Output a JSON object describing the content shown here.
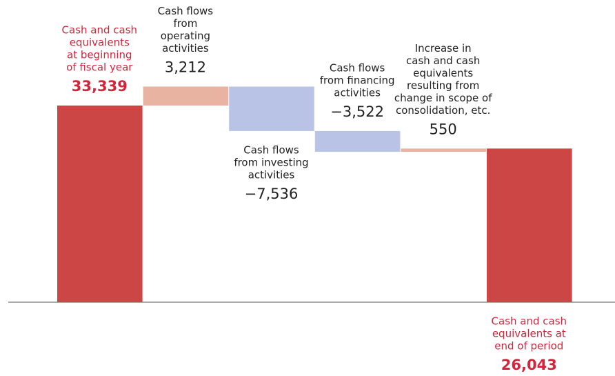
{
  "chart_data": {
    "type": "waterfall",
    "categories": [
      [
        "Cash and cash",
        "equivalents",
        "at beginning",
        "of fiscal year"
      ],
      [
        "Cash flows",
        "from",
        "operating",
        "activities"
      ],
      [
        "Cash flows",
        "from investing",
        "activities"
      ],
      [
        "Cash flows",
        "from financing",
        "activities"
      ],
      [
        "Increase in",
        "cash and cash",
        "equivalents",
        "resulting from",
        "change in scope of",
        "consolidation, etc."
      ],
      [
        "Cash and cash",
        "equivalents at",
        "end of period"
      ]
    ],
    "values": [
      33339,
      3212,
      -7536,
      -3522,
      550,
      26043
    ],
    "value_labels": [
      "33,339",
      "3,212",
      "−7,536",
      "−3,522",
      "550",
      "26,043"
    ],
    "totals": [
      true,
      false,
      false,
      false,
      false,
      true
    ],
    "colors": [
      "#cc4646",
      "#e9b3a2",
      "#b9c3e5",
      "#b9c3e5",
      "#e9b3a2",
      "#cc4646"
    ],
    "label_colors": [
      "#d3253b",
      "#222222",
      "#222222",
      "#222222",
      "#222222",
      "#d3253b"
    ],
    "ylim": [
      0,
      40000
    ]
  }
}
